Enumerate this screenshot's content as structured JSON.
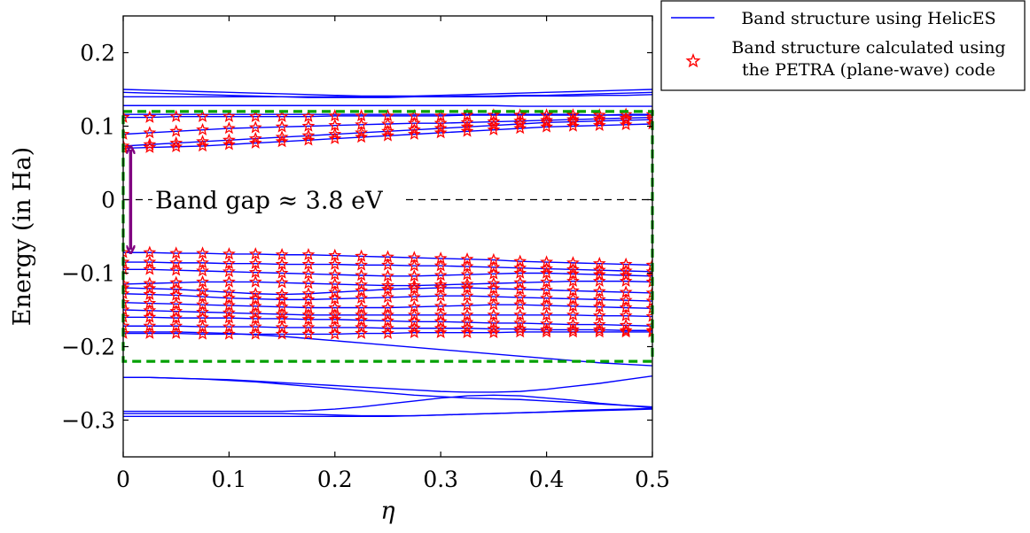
{
  "chart_data": {
    "type": "line",
    "xlabel": "η",
    "ylabel": "Energy (in Ha)",
    "xlim": [
      0,
      0.5
    ],
    "ylim": [
      -0.35,
      0.25
    ],
    "xticks": [
      "0",
      "0.1",
      "0.2",
      "0.3",
      "0.4",
      "0.5"
    ],
    "yticks": [
      "0.2",
      "0.1",
      "0",
      "−0.1",
      "−0.2",
      "−0.3"
    ],
    "ytick_values": [
      0.2,
      0.1,
      0,
      -0.1,
      -0.2,
      -0.3
    ],
    "xtick_values": [
      0,
      0.1,
      0.2,
      0.3,
      0.4,
      0.5
    ],
    "grid": false,
    "legend_position": "outside-top-right",
    "legend": [
      {
        "label": "Band structure using HelicES",
        "marker": "line",
        "color": "#0000ff"
      },
      {
        "label_lines": [
          "Band structure calculated using",
          "the PETRA (plane-wave) code"
        ],
        "marker": "star",
        "color": "#ff0000"
      }
    ],
    "annotation": {
      "text": "Band gap ≈ 3.8 eV",
      "arrow_color": "#800080",
      "arrow_x": 0.007,
      "arrow_y_from": 0.068,
      "arrow_y_to": -0.068,
      "dashed_line_y": 0
    },
    "region_box": {
      "x": [
        0,
        0.5
      ],
      "y": [
        -0.22,
        0.12
      ],
      "color": "#00a000"
    },
    "line_color": "#0000ff",
    "marker_color": "#ff0000",
    "x": [
      0,
      0.025,
      0.05,
      0.075,
      0.1,
      0.125,
      0.15,
      0.175,
      0.2,
      0.225,
      0.25,
      0.275,
      0.3,
      0.325,
      0.35,
      0.375,
      0.4,
      0.425,
      0.45,
      0.475,
      0.5
    ],
    "series_lines": [
      {
        "values": [
          0.15,
          0.149,
          0.148,
          0.147,
          0.146,
          0.145,
          0.144,
          0.143,
          0.142,
          0.141,
          0.141,
          0.141,
          0.142,
          0.143,
          0.144,
          0.145,
          0.146,
          0.147,
          0.148,
          0.149,
          0.15
        ]
      },
      {
        "values": [
          0.146,
          0.145,
          0.144,
          0.143,
          0.142,
          0.141,
          0.14,
          0.139,
          0.139,
          0.139,
          0.139,
          0.14,
          0.14,
          0.141,
          0.141,
          0.142,
          0.142,
          0.143,
          0.144,
          0.145,
          0.146
        ]
      },
      {
        "values": [
          0.14,
          0.14,
          0.14,
          0.14,
          0.14,
          0.14,
          0.14,
          0.14,
          0.14,
          0.14,
          0.14,
          0.14,
          0.14,
          0.14,
          0.14,
          0.141,
          0.141,
          0.141,
          0.142,
          0.142,
          0.143
        ]
      },
      {
        "values": [
          0.128,
          0.128,
          0.128,
          0.128,
          0.128,
          0.128,
          0.128,
          0.128,
          0.128,
          0.128,
          0.128,
          0.128,
          0.128,
          0.128,
          0.128,
          0.127,
          0.127,
          0.127,
          0.127,
          0.127,
          0.127
        ]
      },
      {
        "values": [
          0.116,
          0.116,
          0.116,
          0.116,
          0.116,
          0.116,
          0.116,
          0.116,
          0.116,
          0.116,
          0.116,
          0.116,
          0.116,
          0.116,
          0.116,
          0.116,
          0.116,
          0.116,
          0.115,
          0.115,
          0.115
        ]
      },
      {
        "values": [
          0.112,
          0.112,
          0.113,
          0.113,
          0.113,
          0.113,
          0.113,
          0.113,
          0.114,
          0.114,
          0.114,
          0.114,
          0.114,
          0.115,
          0.115,
          0.115,
          0.115,
          0.115,
          0.115,
          0.116,
          0.116
        ]
      },
      {
        "values": [
          0.089,
          0.091,
          0.093,
          0.095,
          0.097,
          0.098,
          0.099,
          0.1,
          0.101,
          0.102,
          0.103,
          0.104,
          0.104,
          0.105,
          0.106,
          0.107,
          0.108,
          0.109,
          0.11,
          0.111,
          0.112
        ]
      },
      {
        "values": [
          0.073,
          0.075,
          0.077,
          0.079,
          0.081,
          0.083,
          0.085,
          0.087,
          0.089,
          0.091,
          0.093,
          0.095,
          0.097,
          0.099,
          0.101,
          0.103,
          0.105,
          0.106,
          0.107,
          0.108,
          0.109
        ]
      },
      {
        "values": [
          0.07,
          0.071,
          0.072,
          0.073,
          0.075,
          0.077,
          0.079,
          0.081,
          0.083,
          0.085,
          0.087,
          0.089,
          0.091,
          0.093,
          0.095,
          0.097,
          0.099,
          0.1,
          0.101,
          0.102,
          0.103
        ]
      },
      {
        "values": [
          -0.072,
          -0.072,
          -0.073,
          -0.073,
          -0.074,
          -0.074,
          -0.075,
          -0.075,
          -0.076,
          -0.077,
          -0.078,
          -0.079,
          -0.08,
          -0.081,
          -0.082,
          -0.084,
          -0.085,
          -0.086,
          -0.087,
          -0.088,
          -0.089
        ]
      },
      {
        "values": [
          -0.085,
          -0.085,
          -0.086,
          -0.086,
          -0.087,
          -0.087,
          -0.088,
          -0.088,
          -0.088,
          -0.089,
          -0.089,
          -0.09,
          -0.09,
          -0.091,
          -0.092,
          -0.093,
          -0.094,
          -0.095,
          -0.096,
          -0.097,
          -0.098
        ]
      },
      {
        "values": [
          -0.095,
          -0.095,
          -0.096,
          -0.097,
          -0.098,
          -0.099,
          -0.1,
          -0.101,
          -0.102,
          -0.103,
          -0.104,
          -0.104,
          -0.103,
          -0.102,
          -0.101,
          -0.1,
          -0.1,
          -0.101,
          -0.102,
          -0.103,
          -0.104
        ]
      },
      {
        "values": [
          -0.115,
          -0.114,
          -0.113,
          -0.112,
          -0.112,
          -0.112,
          -0.113,
          -0.114,
          -0.115,
          -0.116,
          -0.117,
          -0.117,
          -0.116,
          -0.115,
          -0.114,
          -0.113,
          -0.112,
          -0.111,
          -0.111,
          -0.111,
          -0.112
        ]
      },
      {
        "values": [
          -0.12,
          -0.121,
          -0.122,
          -0.124,
          -0.126,
          -0.128,
          -0.129,
          -0.128,
          -0.126,
          -0.124,
          -0.122,
          -0.121,
          -0.12,
          -0.12,
          -0.121,
          -0.122,
          -0.123,
          -0.124,
          -0.125,
          -0.126,
          -0.127
        ]
      },
      {
        "values": [
          -0.128,
          -0.129,
          -0.13,
          -0.132,
          -0.134,
          -0.135,
          -0.136,
          -0.136,
          -0.135,
          -0.134,
          -0.133,
          -0.132,
          -0.131,
          -0.131,
          -0.132,
          -0.133,
          -0.134,
          -0.135,
          -0.136,
          -0.137,
          -0.138
        ]
      },
      {
        "values": [
          -0.14,
          -0.141,
          -0.142,
          -0.143,
          -0.144,
          -0.145,
          -0.146,
          -0.147,
          -0.147,
          -0.147,
          -0.147,
          -0.146,
          -0.145,
          -0.144,
          -0.143,
          -0.143,
          -0.144,
          -0.145,
          -0.146,
          -0.147,
          -0.148
        ]
      },
      {
        "values": [
          -0.15,
          -0.151,
          -0.152,
          -0.153,
          -0.154,
          -0.155,
          -0.156,
          -0.157,
          -0.157,
          -0.157,
          -0.157,
          -0.157,
          -0.157,
          -0.157,
          -0.157,
          -0.157,
          -0.157,
          -0.157,
          -0.158,
          -0.158,
          -0.159
        ]
      },
      {
        "values": [
          -0.16,
          -0.16,
          -0.161,
          -0.161,
          -0.161,
          -0.162,
          -0.162,
          -0.163,
          -0.163,
          -0.164,
          -0.165,
          -0.166,
          -0.166,
          -0.167,
          -0.168,
          -0.168,
          -0.169,
          -0.17,
          -0.17,
          -0.171,
          -0.172
        ]
      },
      {
        "values": [
          -0.172,
          -0.172,
          -0.172,
          -0.173,
          -0.173,
          -0.173,
          -0.174,
          -0.174,
          -0.174,
          -0.174,
          -0.175,
          -0.175,
          -0.175,
          -0.175,
          -0.176,
          -0.176,
          -0.177,
          -0.177,
          -0.177,
          -0.178,
          -0.178
        ]
      },
      {
        "values": [
          -0.182,
          -0.182,
          -0.182,
          -0.183,
          -0.183,
          -0.183,
          -0.183,
          -0.183,
          -0.183,
          -0.182,
          -0.182,
          -0.181,
          -0.181,
          -0.181,
          -0.181,
          -0.18,
          -0.18,
          -0.18,
          -0.18,
          -0.18,
          -0.18
        ]
      },
      {
        "values": [
          -0.18,
          -0.18,
          -0.18,
          -0.181,
          -0.182,
          -0.184,
          -0.186,
          -0.189,
          -0.192,
          -0.195,
          -0.198,
          -0.201,
          -0.204,
          -0.207,
          -0.21,
          -0.213,
          -0.216,
          -0.219,
          -0.222,
          -0.224,
          -0.226
        ]
      },
      {
        "values": [
          -0.242,
          -0.242,
          -0.243,
          -0.244,
          -0.245,
          -0.247,
          -0.249,
          -0.251,
          -0.253,
          -0.255,
          -0.257,
          -0.259,
          -0.261,
          -0.262,
          -0.262,
          -0.261,
          -0.258,
          -0.254,
          -0.25,
          -0.245,
          -0.24
        ]
      },
      {
        "values": [
          -0.242,
          -0.242,
          -0.243,
          -0.244,
          -0.246,
          -0.248,
          -0.251,
          -0.254,
          -0.257,
          -0.26,
          -0.263,
          -0.266,
          -0.268,
          -0.27,
          -0.271,
          -0.272,
          -0.274,
          -0.276,
          -0.278,
          -0.28,
          -0.282
        ]
      },
      {
        "values": [
          -0.288,
          -0.288,
          -0.288,
          -0.288,
          -0.288,
          -0.288,
          -0.288,
          -0.287,
          -0.285,
          -0.282,
          -0.278,
          -0.274,
          -0.27,
          -0.267,
          -0.266,
          -0.267,
          -0.27,
          -0.273,
          -0.277,
          -0.28,
          -0.283
        ]
      },
      {
        "values": [
          -0.291,
          -0.291,
          -0.291,
          -0.291,
          -0.291,
          -0.291,
          -0.291,
          -0.292,
          -0.293,
          -0.294,
          -0.294,
          -0.294,
          -0.293,
          -0.292,
          -0.291,
          -0.29,
          -0.289,
          -0.287,
          -0.286,
          -0.285,
          -0.284
        ]
      },
      {
        "values": [
          -0.295,
          -0.295,
          -0.295,
          -0.295,
          -0.295,
          -0.295,
          -0.295,
          -0.295,
          -0.295,
          -0.295,
          -0.295,
          -0.294,
          -0.293,
          -0.292,
          -0.291,
          -0.29,
          -0.289,
          -0.288,
          -0.287,
          -0.286,
          -0.285
        ]
      }
    ],
    "marker_bands": [
      {
        "values": [
          0.112,
          0.112,
          0.113,
          0.113,
          0.113,
          0.113,
          0.113,
          0.113,
          0.114,
          0.114,
          0.114,
          0.114,
          0.114,
          0.115,
          0.115,
          0.115,
          0.115,
          0.115,
          0.115,
          0.116,
          0.116
        ]
      },
      {
        "values": [
          0.089,
          0.091,
          0.093,
          0.095,
          0.097,
          0.098,
          0.099,
          0.1,
          0.101,
          0.102,
          0.103,
          0.104,
          0.104,
          0.105,
          0.106,
          0.107,
          0.108,
          0.109,
          0.11,
          0.111,
          0.112
        ]
      },
      {
        "values": [
          0.073,
          0.075,
          0.077,
          0.079,
          0.081,
          0.083,
          0.085,
          0.087,
          0.089,
          0.091,
          0.093,
          0.095,
          0.097,
          0.099,
          0.101,
          0.103,
          0.105,
          0.106,
          0.107,
          0.108,
          0.109
        ]
      },
      {
        "values": [
          0.07,
          0.071,
          0.072,
          0.073,
          0.075,
          0.077,
          0.079,
          0.081,
          0.083,
          0.085,
          0.087,
          0.089,
          0.091,
          0.093,
          0.095,
          0.097,
          0.099,
          0.1,
          0.101,
          0.102,
          0.103
        ]
      },
      {
        "values": [
          -0.072,
          -0.072,
          -0.073,
          -0.073,
          -0.074,
          -0.074,
          -0.075,
          -0.075,
          -0.076,
          -0.077,
          -0.078,
          -0.079,
          -0.08,
          -0.081,
          -0.082,
          -0.084,
          -0.085,
          -0.086,
          -0.087,
          -0.088,
          -0.089
        ]
      },
      {
        "values": [
          -0.085,
          -0.085,
          -0.086,
          -0.086,
          -0.087,
          -0.087,
          -0.088,
          -0.088,
          -0.088,
          -0.089,
          -0.089,
          -0.09,
          -0.09,
          -0.091,
          -0.092,
          -0.093,
          -0.094,
          -0.095,
          -0.096,
          -0.097,
          -0.098
        ]
      },
      {
        "values": [
          -0.095,
          -0.095,
          -0.096,
          -0.097,
          -0.098,
          -0.099,
          -0.1,
          -0.101,
          -0.102,
          -0.103,
          -0.104,
          -0.104,
          -0.103,
          -0.102,
          -0.101,
          -0.1,
          -0.1,
          -0.101,
          -0.102,
          -0.103,
          -0.104
        ]
      },
      {
        "values": [
          -0.115,
          -0.114,
          -0.113,
          -0.112,
          -0.112,
          -0.112,
          -0.113,
          -0.114,
          -0.115,
          -0.116,
          -0.117,
          -0.117,
          -0.116,
          -0.115,
          -0.114,
          -0.113,
          -0.112,
          -0.111,
          -0.111,
          -0.111,
          -0.112
        ]
      },
      {
        "values": [
          -0.12,
          -0.121,
          -0.122,
          -0.124,
          -0.126,
          -0.128,
          -0.129,
          -0.128,
          -0.126,
          -0.124,
          -0.122,
          -0.121,
          -0.12,
          -0.12,
          -0.121,
          -0.122,
          -0.123,
          -0.124,
          -0.125,
          -0.126,
          -0.127
        ]
      },
      {
        "values": [
          -0.128,
          -0.129,
          -0.13,
          -0.132,
          -0.134,
          -0.135,
          -0.136,
          -0.136,
          -0.135,
          -0.134,
          -0.133,
          -0.132,
          -0.131,
          -0.131,
          -0.132,
          -0.133,
          -0.134,
          -0.135,
          -0.136,
          -0.137,
          -0.138
        ]
      },
      {
        "values": [
          -0.14,
          -0.141,
          -0.142,
          -0.143,
          -0.144,
          -0.145,
          -0.146,
          -0.147,
          -0.147,
          -0.147,
          -0.147,
          -0.146,
          -0.145,
          -0.144,
          -0.143,
          -0.143,
          -0.144,
          -0.145,
          -0.146,
          -0.147,
          -0.148
        ]
      },
      {
        "values": [
          -0.15,
          -0.151,
          -0.152,
          -0.153,
          -0.154,
          -0.155,
          -0.156,
          -0.157,
          -0.157,
          -0.157,
          -0.157,
          -0.157,
          -0.157,
          -0.157,
          -0.157,
          -0.157,
          -0.157,
          -0.157,
          -0.158,
          -0.158,
          -0.159
        ]
      },
      {
        "values": [
          -0.16,
          -0.16,
          -0.161,
          -0.161,
          -0.161,
          -0.162,
          -0.162,
          -0.163,
          -0.163,
          -0.164,
          -0.165,
          -0.166,
          -0.166,
          -0.167,
          -0.168,
          -0.168,
          -0.169,
          -0.17,
          -0.17,
          -0.171,
          -0.172
        ]
      },
      {
        "values": [
          -0.172,
          -0.172,
          -0.172,
          -0.173,
          -0.173,
          -0.173,
          -0.174,
          -0.174,
          -0.174,
          -0.174,
          -0.175,
          -0.175,
          -0.175,
          -0.175,
          -0.176,
          -0.176,
          -0.177,
          -0.177,
          -0.177,
          -0.178,
          -0.178
        ]
      },
      {
        "values": [
          -0.182,
          -0.182,
          -0.182,
          -0.183,
          -0.183,
          -0.183,
          -0.183,
          -0.183,
          -0.183,
          -0.182,
          -0.182,
          -0.181,
          -0.181,
          -0.181,
          -0.181,
          -0.18,
          -0.18,
          -0.18,
          -0.18,
          -0.18,
          -0.18
        ]
      }
    ]
  }
}
